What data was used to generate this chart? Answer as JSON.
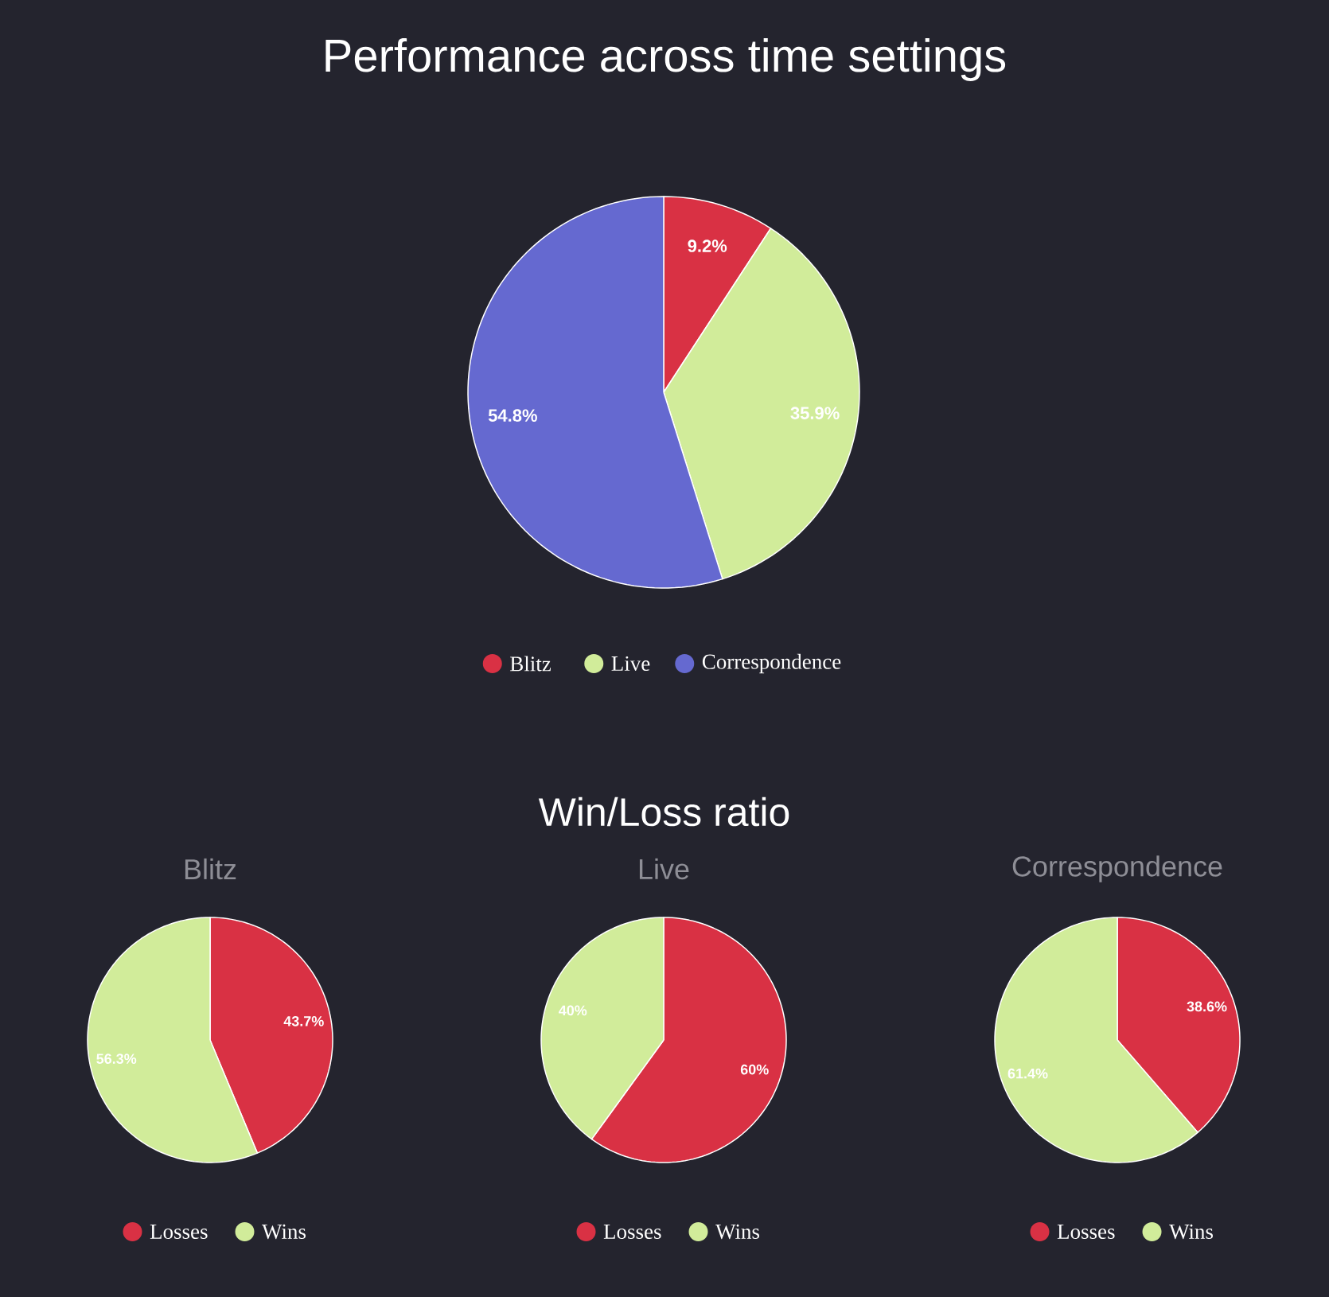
{
  "chart_data": [
    {
      "type": "pie",
      "title": "Performance across time settings",
      "categories": [
        "Blitz",
        "Live",
        "Correspondence"
      ],
      "values": [
        9.2,
        35.9,
        54.8
      ],
      "colors": [
        "#d93144",
        "#d1ec9a",
        "#6569d0"
      ],
      "value_labels": [
        "9.2%",
        "35.9%",
        "54.8%"
      ],
      "legend": "bottom"
    },
    {
      "type": "other",
      "title": "Win/Loss ratio"
    },
    {
      "type": "pie",
      "subtitle": "Blitz",
      "categories": [
        "Losses",
        "Wins"
      ],
      "values": [
        43.7,
        56.3
      ],
      "colors": [
        "#d93144",
        "#d1ec9a"
      ],
      "value_labels": [
        "43.7%",
        "56.3%"
      ],
      "legend": "bottom"
    },
    {
      "type": "pie",
      "subtitle": "Live",
      "categories": [
        "Losses",
        "Wins"
      ],
      "values": [
        60,
        40
      ],
      "colors": [
        "#d93144",
        "#d1ec9a"
      ],
      "value_labels": [
        "60%",
        "40%"
      ],
      "legend": "bottom"
    },
    {
      "type": "pie",
      "subtitle": "Correspondence",
      "categories": [
        "Losses",
        "Wins"
      ],
      "values": [
        38.6,
        61.4
      ],
      "colors": [
        "#d93144",
        "#d1ec9a"
      ],
      "value_labels": [
        "38.6%",
        "61.4%"
      ],
      "legend": "bottom"
    }
  ]
}
